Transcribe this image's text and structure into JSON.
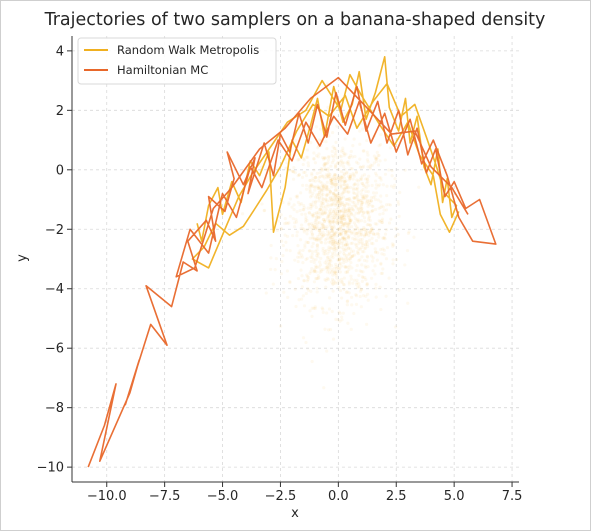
{
  "chart_data": {
    "type": "line",
    "title": "Trajectories of two samplers on a banana-shaped density",
    "xlabel": "x",
    "ylabel": "y",
    "xlim": [
      -11.5,
      7.8
    ],
    "ylim": [
      -10.5,
      4.5
    ],
    "grid": true,
    "legend_position": "top-left",
    "x_ticks": [
      -10,
      -7.5,
      -5,
      -2.5,
      0,
      2.5,
      5,
      7.5
    ],
    "x_tick_labels": [
      "−10.0",
      "−7.5",
      "−5.0",
      "−2.5",
      "0.0",
      "2.5",
      "5.0",
      "7.5"
    ],
    "y_ticks": [
      4,
      2,
      0,
      -2,
      -4,
      -6,
      -8,
      -10
    ],
    "y_tick_labels": [
      "4",
      "2",
      "0",
      "−2",
      "−4",
      "−6",
      "−8",
      "−10"
    ],
    "background_cloud": {
      "description_color": "#f5a623",
      "center": [
        0.0,
        -1.7
      ],
      "spread": [
        1.1,
        1.4
      ],
      "point_count": 1500
    },
    "series": [
      {
        "name": "Random Walk Metropolis",
        "color": "#f0b020",
        "points": [
          [
            -6.1,
            -1.8
          ],
          [
            -5.9,
            -2.4
          ],
          [
            -5.6,
            -1.2
          ],
          [
            -5.2,
            -0.6
          ],
          [
            -5.0,
            -1.5
          ],
          [
            -4.6,
            -0.4
          ],
          [
            -4.2,
            -1.1
          ],
          [
            -3.8,
            0.3
          ],
          [
            -3.4,
            -0.2
          ],
          [
            -3.0,
            0.6
          ],
          [
            -2.8,
            -2.1
          ],
          [
            -2.3,
            -0.6
          ],
          [
            -2.0,
            1.0
          ],
          [
            -1.6,
            0.4
          ],
          [
            -1.2,
            1.5
          ],
          [
            -0.9,
            2.4
          ],
          [
            -0.6,
            1.1
          ],
          [
            -0.2,
            2.8
          ],
          [
            0.2,
            1.6
          ],
          [
            0.6,
            2.2
          ],
          [
            0.9,
            3.3
          ],
          [
            1.2,
            1.7
          ],
          [
            1.6,
            2.6
          ],
          [
            2.0,
            3.8
          ],
          [
            2.2,
            2.1
          ],
          [
            2.6,
            1.3
          ],
          [
            2.9,
            2.4
          ],
          [
            3.1,
            0.9
          ],
          [
            3.4,
            1.8
          ],
          [
            3.7,
            0.1
          ],
          [
            4.0,
            -0.5
          ],
          [
            4.3,
            0.7
          ],
          [
            4.5,
            -1.1
          ],
          [
            4.7,
            -0.3
          ],
          [
            4.9,
            -1.6
          ],
          [
            5.1,
            -1.2
          ],
          [
            4.6,
            -0.8
          ],
          [
            4.2,
            0.2
          ],
          [
            3.8,
            1.1
          ],
          [
            3.3,
            2.2
          ],
          [
            2.7,
            1.8
          ],
          [
            2.1,
            2.9
          ],
          [
            1.5,
            2.3
          ],
          [
            0.8,
            1.4
          ],
          [
            0.3,
            2.5
          ],
          [
            -0.4,
            1.8
          ],
          [
            -1.1,
            2.2
          ],
          [
            -1.8,
            1.3
          ],
          [
            -2.5,
            0.1
          ],
          [
            -3.1,
            -0.7
          ],
          [
            -3.6,
            -1.3
          ],
          [
            -4.1,
            -1.9
          ],
          [
            -4.7,
            -2.2
          ],
          [
            -5.3,
            -1.8
          ],
          [
            -5.8,
            -2.6
          ],
          [
            -6.3,
            -3.0
          ],
          [
            -5.6,
            -3.3
          ],
          [
            -4.9,
            -2.0
          ],
          [
            -4.3,
            -0.9
          ],
          [
            -3.7,
            -0.1
          ],
          [
            -2.9,
            0.8
          ],
          [
            -2.2,
            1.6
          ],
          [
            -1.4,
            2.0
          ],
          [
            -0.7,
            3.0
          ],
          [
            0.1,
            2.0
          ],
          [
            0.5,
            3.2
          ],
          [
            1.0,
            2.5
          ],
          [
            1.8,
            1.5
          ],
          [
            2.4,
            0.8
          ],
          [
            3.0,
            1.6
          ],
          [
            3.5,
            0.5
          ],
          [
            4.1,
            -0.2
          ],
          [
            4.4,
            -1.5
          ],
          [
            4.8,
            -2.1
          ],
          [
            5.2,
            -1.4
          ]
        ]
      },
      {
        "name": "Hamiltonian MC",
        "color": "#e8672a",
        "points": [
          [
            -10.8,
            -10.0
          ],
          [
            -10.1,
            -8.6
          ],
          [
            -9.6,
            -7.2
          ],
          [
            -10.3,
            -9.8
          ],
          [
            -9.0,
            -7.5
          ],
          [
            -8.6,
            -6.4
          ],
          [
            -9.2,
            -7.9
          ],
          [
            -8.1,
            -5.2
          ],
          [
            -7.4,
            -5.9
          ],
          [
            -8.3,
            -3.9
          ],
          [
            -7.2,
            -4.6
          ],
          [
            -6.7,
            -3.1
          ],
          [
            -6.1,
            -3.4
          ],
          [
            -6.5,
            -2.4
          ],
          [
            -5.7,
            -1.7
          ],
          [
            -5.3,
            -2.4
          ],
          [
            -5.6,
            -0.9
          ],
          [
            -4.9,
            -1.4
          ],
          [
            -4.5,
            -0.3
          ],
          [
            -4.8,
            0.6
          ],
          [
            -4.1,
            -0.5
          ],
          [
            -3.6,
            0.4
          ],
          [
            -3.9,
            -0.8
          ],
          [
            -3.2,
            0.9
          ],
          [
            -2.8,
            -0.2
          ],
          [
            -2.5,
            1.2
          ],
          [
            -2.1,
            0.6
          ],
          [
            -1.7,
            1.9
          ],
          [
            -1.3,
            0.9
          ],
          [
            -0.9,
            2.2
          ],
          [
            -0.5,
            1.1
          ],
          [
            -0.1,
            2.6
          ],
          [
            0.3,
            1.5
          ],
          [
            0.8,
            2.8
          ],
          [
            1.2,
            1.3
          ],
          [
            1.7,
            2.3
          ],
          [
            2.1,
            0.9
          ],
          [
            2.6,
            2.0
          ],
          [
            3.0,
            0.5
          ],
          [
            3.4,
            1.4
          ],
          [
            3.8,
            -0.1
          ],
          [
            4.2,
            0.7
          ],
          [
            4.6,
            -0.9
          ],
          [
            5.0,
            -0.4
          ],
          [
            5.5,
            -1.3
          ],
          [
            6.1,
            -1.0
          ],
          [
            6.8,
            -2.5
          ],
          [
            5.8,
            -2.4
          ],
          [
            5.2,
            -1.6
          ],
          [
            4.7,
            -0.2
          ],
          [
            4.1,
            1.0
          ],
          [
            3.6,
            0.2
          ],
          [
            3.1,
            1.7
          ],
          [
            2.5,
            0.6
          ],
          [
            2.0,
            1.9
          ],
          [
            1.4,
            0.9
          ],
          [
            0.9,
            2.3
          ],
          [
            0.4,
            1.2
          ],
          [
            -0.2,
            1.8
          ],
          [
            -0.8,
            0.8
          ],
          [
            -1.4,
            1.6
          ],
          [
            -2.0,
            0.3
          ],
          [
            -2.6,
            1.0
          ],
          [
            -3.3,
            -0.6
          ],
          [
            -3.8,
            0.1
          ],
          [
            -4.4,
            -1.6
          ],
          [
            -5.0,
            -0.8
          ],
          [
            -5.6,
            -2.8
          ],
          [
            -6.4,
            -2.0
          ],
          [
            -7.0,
            -3.6
          ],
          [
            -6.2,
            -3.3
          ],
          [
            -5.4,
            -1.3
          ],
          [
            -4.6,
            -0.6
          ],
          [
            -3.4,
            0.7
          ],
          [
            -2.3,
            1.4
          ],
          [
            -1.2,
            2.4
          ],
          [
            0.0,
            3.1
          ],
          [
            1.1,
            2.2
          ],
          [
            2.3,
            1.2
          ],
          [
            3.3,
            1.3
          ],
          [
            4.0,
            0.1
          ],
          [
            4.9,
            -0.6
          ],
          [
            5.6,
            -1.5
          ]
        ]
      }
    ]
  }
}
